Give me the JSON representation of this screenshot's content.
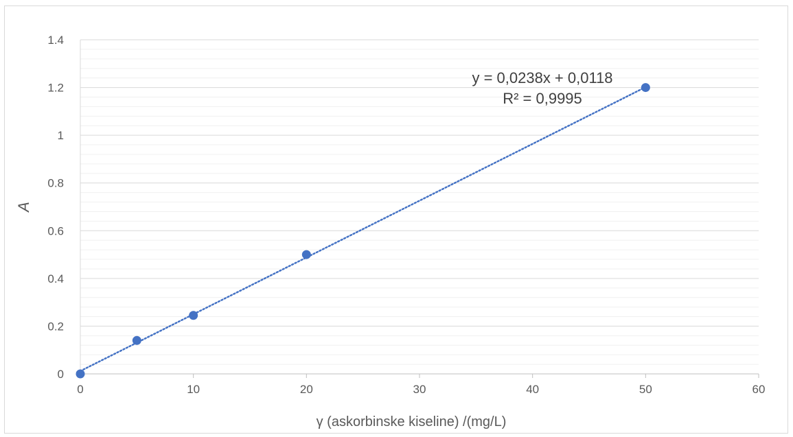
{
  "chart_data": {
    "type": "scatter",
    "title": "",
    "xlabel": "γ (askorbinske kiseline) /(mg/L)",
    "ylabel": "A",
    "xlim": [
      0,
      60
    ],
    "ylim": [
      0,
      1.4
    ],
    "x_ticks": [
      0,
      10,
      20,
      30,
      40,
      50,
      60
    ],
    "x_tick_labels": [
      "0",
      "10",
      "20",
      "30",
      "40",
      "50",
      "60"
    ],
    "y_ticks": [
      0,
      0.2,
      0.4,
      0.6,
      0.8,
      1.0,
      1.2,
      1.4
    ],
    "y_tick_labels": [
      "0",
      "0.2",
      "0.4",
      "0.6",
      "0.8",
      "1",
      "1.2",
      "1.4"
    ],
    "grid": true,
    "minor_grid": true,
    "series": [
      {
        "x": [
          0,
          5,
          10,
          20,
          50
        ],
        "y": [
          0.0,
          0.14,
          0.245,
          0.5,
          1.2
        ],
        "color": "#4472C4"
      }
    ],
    "trendline": {
      "type": "linear",
      "slope": 0.0238,
      "intercept": 0.0118,
      "x_range": [
        0,
        50
      ],
      "style": "dotted",
      "color": "#4472C4",
      "equation_text": "y = 0,0238x + 0,0118",
      "r2_text": "R² = 0,9995"
    }
  }
}
